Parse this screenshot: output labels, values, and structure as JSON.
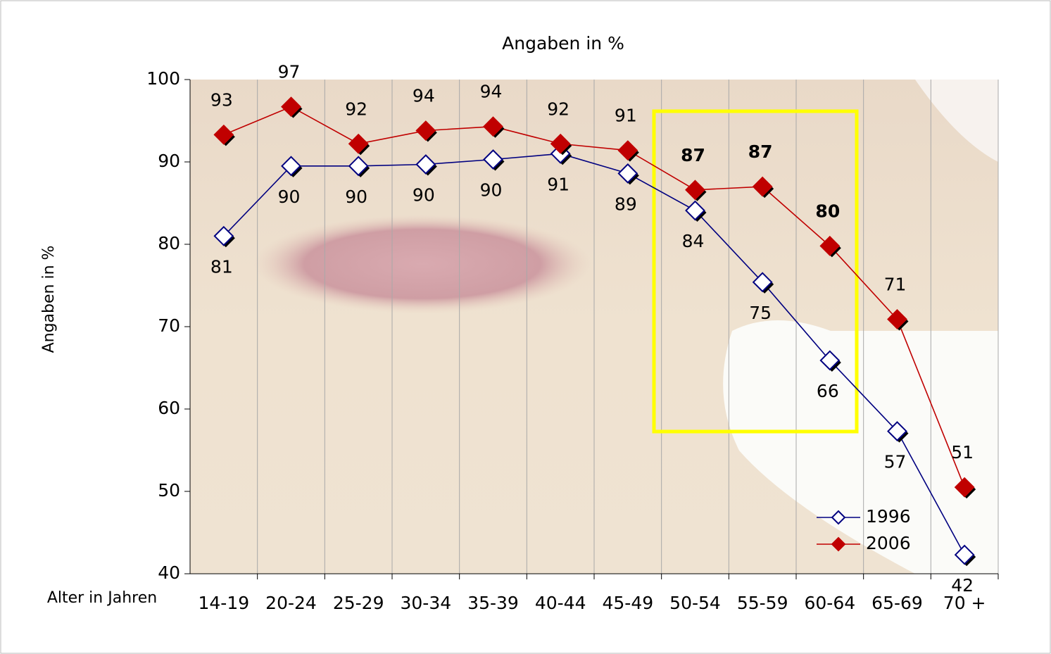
{
  "chart_data": {
    "type": "line",
    "title": "Angaben in %",
    "y_label": "Angaben in %",
    "x_label": "Alter in Jahren",
    "categories": [
      "14-19",
      "20-24",
      "25-29",
      "30-34",
      "35-39",
      "40-44",
      "45-49",
      "50-54",
      "55-59",
      "60-64",
      "65-69",
      "70 +"
    ],
    "series": [
      {
        "name": "1996",
        "color": "#000080",
        "marker_fill": "#ffffff",
        "values": [
          81.0,
          89.5,
          89.5,
          89.7,
          90.3,
          91.0,
          88.6,
          84.1,
          75.4,
          65.9,
          57.3,
          42.3
        ],
        "value_labels": [
          "81",
          "90",
          "90",
          "90",
          "90",
          "91",
          "89",
          "84",
          "75",
          "66",
          "57",
          "42"
        ]
      },
      {
        "name": "2006",
        "color": "#c00000",
        "marker_fill": "#c00000",
        "values": [
          93.3,
          96.7,
          92.2,
          93.8,
          94.3,
          92.2,
          91.4,
          86.6,
          87.0,
          79.8,
          70.9,
          50.5
        ],
        "value_labels": [
          "93",
          "97",
          "92",
          "94",
          "94",
          "92",
          "91",
          "87",
          "87",
          "80",
          "71",
          "51"
        ]
      }
    ],
    "ylim": [
      40,
      100
    ],
    "yticks": [
      40,
      50,
      60,
      70,
      80,
      90,
      100
    ],
    "legend": "lower-right"
  }
}
